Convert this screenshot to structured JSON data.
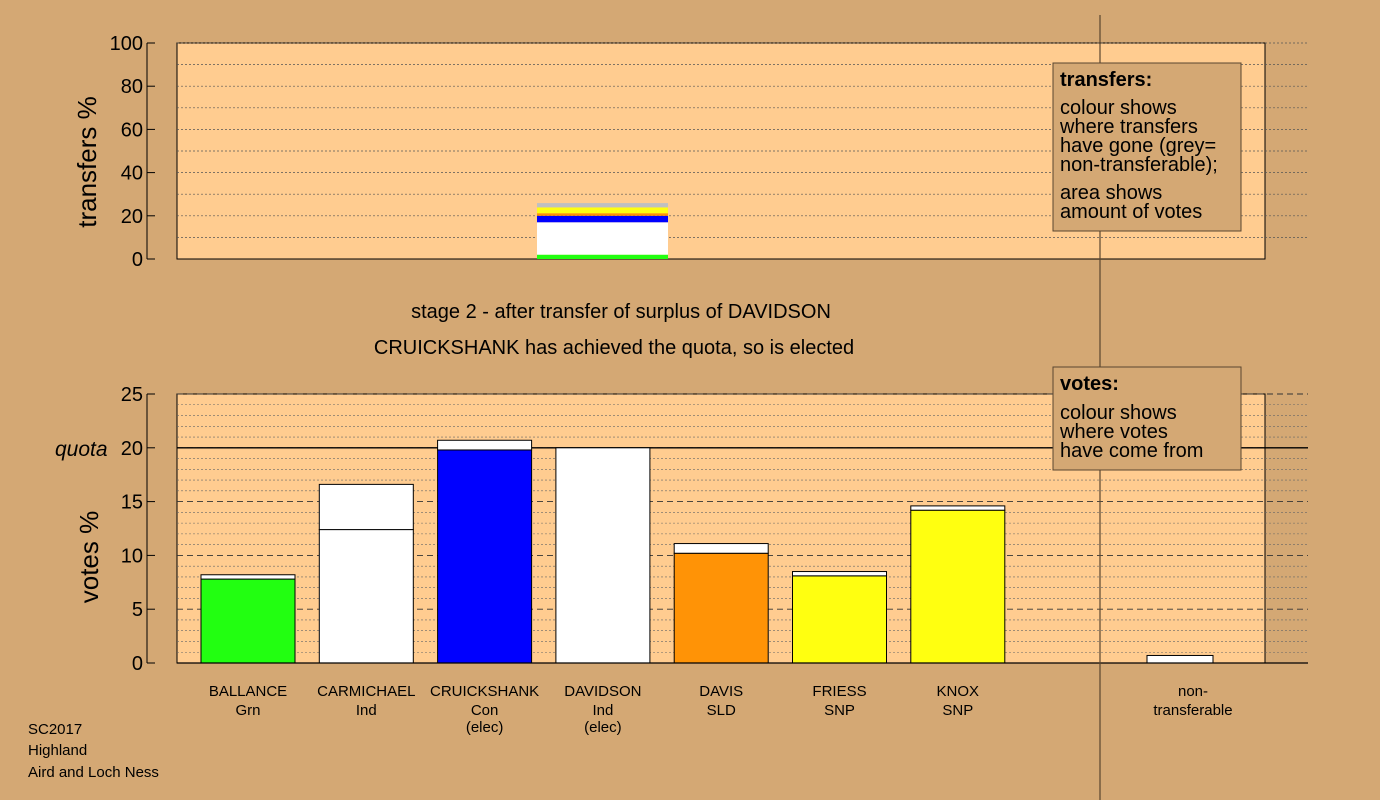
{
  "caption": {
    "stage": "stage 2 - after transfer of surplus of DAVIDSON",
    "elected": "CRUICKSHANK has achieved the quota, so is elected"
  },
  "quota_label": "quota",
  "footer": [
    "SC2017",
    "Highland",
    "Aird and Loch Ness"
  ],
  "transfers_box": {
    "title": "transfers:",
    "lines": [
      "colour shows",
      "where transfers",
      "have gone (grey=",
      "non-transferable);"
    ],
    "lines2": [
      "area shows",
      "amount of votes"
    ]
  },
  "votes_box": {
    "title": "votes:",
    "lines": [
      "colour shows",
      "where votes",
      "have come from"
    ]
  },
  "colors": {
    "background": "#d4a874",
    "plot": "#ffcc90",
    "Grn": "#22ff11",
    "Ind": "#ffffff",
    "Con": "#0000ff",
    "SLD": "#ff9306",
    "SNP": "#ffff10",
    "nontransferable": "#c0c0c0"
  },
  "chart_data": [
    {
      "type": "bar",
      "title": "",
      "ylabel": "transfers %",
      "ylim": [
        0,
        100
      ],
      "yticks": [
        0,
        20,
        40,
        60,
        80,
        100
      ],
      "grid": true,
      "segments": [
        {
          "to": "BALLANCE",
          "color_key": "Grn",
          "value": 2.0
        },
        {
          "to": "CARMICHAEL",
          "color_key": "Ind",
          "value": 15.0
        },
        {
          "to": "CRUICKSHANK",
          "color_key": "Con",
          "value": 3.0
        },
        {
          "to": "DAVIS",
          "color_key": "SLD",
          "value": 1.2
        },
        {
          "to": "FRIESS",
          "color_key": "SNP",
          "value": 1.3
        },
        {
          "to": "KNOX",
          "color_key": "SNP",
          "value": 1.4
        },
        {
          "to": "non-transferable",
          "color_key": "nontransferable",
          "value": 2.0
        }
      ]
    },
    {
      "type": "bar",
      "title": "",
      "ylabel": "votes %",
      "ylim": [
        0,
        25
      ],
      "yticks": [
        0,
        5,
        10,
        15,
        20,
        25
      ],
      "quota": 20,
      "grid": true,
      "categories": [
        {
          "name": "BALLANCE",
          "party": "Grn",
          "note": "",
          "base": 7.8,
          "transfer": 0.4
        },
        {
          "name": "CARMICHAEL",
          "party": "Ind",
          "note": "",
          "base": 12.4,
          "transfer": 4.2
        },
        {
          "name": "CRUICKSHANK",
          "party": "Con",
          "note": "(elec)",
          "base": 19.8,
          "transfer": 0.9
        },
        {
          "name": "DAVIDSON",
          "party": "Ind",
          "note": "(elec)",
          "base": 20.0,
          "transfer": 0
        },
        {
          "name": "DAVIS",
          "party": "SLD",
          "note": "",
          "base": 10.2,
          "transfer": 0.9
        },
        {
          "name": "FRIESS",
          "party": "SNP",
          "note": "",
          "base": 8.1,
          "transfer": 0.4
        },
        {
          "name": "KNOX",
          "party": "SNP",
          "note": "",
          "base": 14.2,
          "transfer": 0.4
        }
      ],
      "nontransferable": {
        "label1": "non-",
        "label2": "transferable",
        "value": 0.7
      }
    }
  ]
}
